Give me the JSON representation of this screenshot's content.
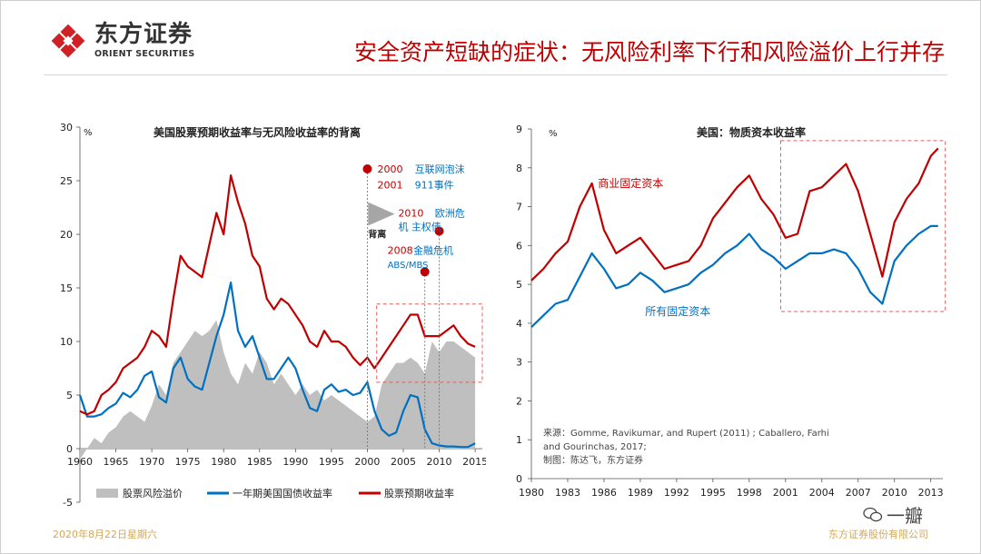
{
  "header": {
    "logo_cn": "东方证券",
    "logo_en": "ORIENT SECURITIES",
    "title": "安全资产短缺的症状：无风险利率下行和风险溢价上行并存"
  },
  "footer": {
    "date": "2020年8月22日星期六",
    "brand": "东方证券股份有限公司",
    "watermark": "一瓣"
  },
  "colors": {
    "red": "#c00000",
    "blue": "#0070c0",
    "gray": "#bfbfbf",
    "gold": "#d3a85a"
  },
  "chart_data": [
    {
      "type": "line",
      "title": "美国股票预期收益率与无风险收益率的背离",
      "ylabel": "%",
      "xlim": [
        1960,
        2016
      ],
      "ylim": [
        -5,
        30
      ],
      "xticks": [
        1960,
        1965,
        1970,
        1975,
        1980,
        1985,
        1990,
        1995,
        2000,
        2005,
        2010,
        2015
      ],
      "yticks": [
        -5,
        0,
        5,
        10,
        15,
        20,
        25,
        30
      ],
      "series": [
        {
          "name": "股票风险溢价",
          "kind": "area",
          "color": "#bfbfbf",
          "x": [
            1960,
            1961,
            1962,
            1963,
            1964,
            1965,
            1966,
            1967,
            1968,
            1969,
            1970,
            1971,
            1972,
            1973,
            1974,
            1975,
            1976,
            1977,
            1978,
            1979,
            1980,
            1981,
            1982,
            1983,
            1984,
            1985,
            1986,
            1987,
            1988,
            1989,
            1990,
            1991,
            1992,
            1993,
            1994,
            1995,
            1996,
            1997,
            1998,
            1999,
            2000,
            2001,
            2002,
            2003,
            2004,
            2005,
            2006,
            2007,
            2008,
            2009,
            2010,
            2011,
            2012,
            2013,
            2014,
            2015
          ],
          "values": [
            -1,
            0,
            1,
            0.5,
            1.5,
            2,
            3,
            3.5,
            3,
            2.5,
            4,
            6,
            5,
            8,
            9,
            10,
            11,
            10.5,
            11,
            12,
            9,
            7,
            6,
            8,
            7,
            9,
            8,
            6,
            7,
            6,
            5,
            6,
            5,
            5.5,
            4.5,
            5,
            4.5,
            4,
            3.5,
            3,
            2.5,
            3,
            6,
            7,
            8,
            8,
            8.5,
            8,
            7,
            10,
            9,
            10,
            10,
            9.5,
            9,
            8.5
          ]
        },
        {
          "name": "一年期美国国债收益率",
          "kind": "line",
          "color": "#0070c0",
          "x": [
            1960,
            1961,
            1962,
            1963,
            1964,
            1965,
            1966,
            1967,
            1968,
            1969,
            1970,
            1971,
            1972,
            1973,
            1974,
            1975,
            1976,
            1977,
            1978,
            1979,
            1980,
            1981,
            1982,
            1983,
            1984,
            1985,
            1986,
            1987,
            1988,
            1989,
            1990,
            1991,
            1992,
            1993,
            1994,
            1995,
            1996,
            1997,
            1998,
            1999,
            2000,
            2001,
            2002,
            2003,
            2004,
            2005,
            2006,
            2007,
            2008,
            2009,
            2010,
            2011,
            2012,
            2013,
            2014,
            2015
          ],
          "values": [
            5,
            3,
            3,
            3.2,
            3.8,
            4.2,
            5.2,
            4.8,
            5.5,
            6.8,
            7.2,
            4.8,
            4.3,
            7.5,
            8.5,
            6.5,
            5.8,
            5.5,
            8,
            10.5,
            12.5,
            15.5,
            11,
            9.5,
            10.5,
            8.5,
            6.5,
            6.5,
            7.5,
            8.5,
            7.5,
            5.5,
            3.8,
            3.5,
            5.5,
            6,
            5.3,
            5.5,
            5,
            5.2,
            6.2,
            3.5,
            1.8,
            1.2,
            1.5,
            3.5,
            5,
            4.8,
            1.8,
            0.5,
            0.3,
            0.2,
            0.2,
            0.15,
            0.15,
            0.5
          ]
        },
        {
          "name": "股票预期收益率",
          "kind": "line",
          "color": "#c00000",
          "x": [
            1960,
            1961,
            1962,
            1963,
            1964,
            1965,
            1966,
            1967,
            1968,
            1969,
            1970,
            1971,
            1972,
            1973,
            1974,
            1975,
            1976,
            1977,
            1978,
            1979,
            1980,
            1981,
            1982,
            1983,
            1984,
            1985,
            1986,
            1987,
            1988,
            1989,
            1990,
            1991,
            1992,
            1993,
            1994,
            1995,
            1996,
            1997,
            1998,
            1999,
            2000,
            2001,
            2002,
            2003,
            2004,
            2005,
            2006,
            2007,
            2008,
            2009,
            2010,
            2011,
            2012,
            2013,
            2014,
            2015
          ],
          "values": [
            3.5,
            3.2,
            3.5,
            5,
            5.5,
            6.2,
            7.5,
            8,
            8.5,
            9.5,
            11,
            10.5,
            9.5,
            14,
            18,
            17,
            16.5,
            16,
            19,
            22,
            20,
            25.5,
            23,
            21,
            18,
            17,
            14,
            13,
            14,
            13.5,
            12.5,
            11.5,
            10,
            9.5,
            11,
            10,
            10,
            9.5,
            8.5,
            7.8,
            8.5,
            7.5,
            8.5,
            9.5,
            10.5,
            11.5,
            12.5,
            12.5,
            10.5,
            10.5,
            10.5,
            11,
            11.5,
            10.5,
            9.8,
            9.5
          ]
        }
      ],
      "legend": [
        "股票风险溢价",
        "一年期美国国债收益率",
        "股票预期收益率"
      ],
      "annotations": [
        {
          "x": 2000,
          "y": 26.1,
          "label_year": "2000",
          "label_text": "互联网泡沫",
          "label_year2": "2001",
          "label_text2": "911事件"
        },
        {
          "x": 2010,
          "y": 20.3,
          "label_year": "2010",
          "label_text": "欧洲危",
          "label_text2": "机 主权债"
        },
        {
          "x": 2008,
          "y": 16.5,
          "label_year": "2008",
          "label_text": "金融危机",
          "label_text2": "ABS/MBS"
        }
      ],
      "divergence_label": "背离"
    },
    {
      "type": "line",
      "title": "美国：物质资本收益率",
      "ylabel": "%",
      "xlim": [
        1980,
        2014
      ],
      "ylim": [
        0,
        9
      ],
      "xticks": [
        1980,
        1983,
        1986,
        1989,
        1992,
        1995,
        1998,
        2001,
        2004,
        2007,
        2010,
        2013
      ],
      "yticks": [
        0,
        1,
        2,
        3,
        4,
        5,
        6,
        7,
        8,
        9
      ],
      "series": [
        {
          "name": "商业固定资本",
          "color": "#c00000",
          "x": [
            1980,
            1981,
            1982,
            1983,
            1984,
            1985,
            1986,
            1987,
            1988,
            1989,
            1990,
            1991,
            1992,
            1993,
            1994,
            1995,
            1996,
            1997,
            1998,
            1999,
            2000,
            2001,
            2002,
            2003,
            2004,
            2005,
            2006,
            2007,
            2008,
            2009,
            2010,
            2011,
            2012,
            2013,
            2013.6
          ],
          "values": [
            5.1,
            5.4,
            5.8,
            6.1,
            7,
            7.6,
            6.4,
            5.8,
            6,
            6.2,
            5.8,
            5.4,
            5.5,
            5.6,
            6,
            6.7,
            7.1,
            7.5,
            7.8,
            7.2,
            6.8,
            6.2,
            6.3,
            7.4,
            7.5,
            7.8,
            8.1,
            7.4,
            6.3,
            5.2,
            6.6,
            7.2,
            7.6,
            8.3,
            8.5
          ]
        },
        {
          "name": "所有固定资本",
          "color": "#0070c0",
          "x": [
            1980,
            1981,
            1982,
            1983,
            1984,
            1985,
            1986,
            1987,
            1988,
            1989,
            1990,
            1991,
            1992,
            1993,
            1994,
            1995,
            1996,
            1997,
            1998,
            1999,
            2000,
            2001,
            2002,
            2003,
            2004,
            2005,
            2006,
            2007,
            2008,
            2009,
            2010,
            2011,
            2012,
            2013,
            2013.6
          ],
          "values": [
            3.9,
            4.2,
            4.5,
            4.6,
            5.2,
            5.8,
            5.4,
            4.9,
            5,
            5.3,
            5.1,
            4.8,
            4.9,
            5,
            5.3,
            5.5,
            5.8,
            6,
            6.3,
            5.9,
            5.7,
            5.4,
            5.6,
            5.8,
            5.8,
            5.9,
            5.8,
            5.4,
            4.8,
            4.5,
            5.6,
            6,
            6.3,
            6.5,
            6.5
          ]
        }
      ],
      "labels": {
        "red": "商业固定资本",
        "blue": "所有固定资本"
      },
      "source": [
        "来源：Gomme, Ravikumar, and Rupert (2011) ; Caballero, Farhi",
        "and Gourinchas, 2017;",
        "制图：陈达飞，东方证券"
      ]
    }
  ]
}
